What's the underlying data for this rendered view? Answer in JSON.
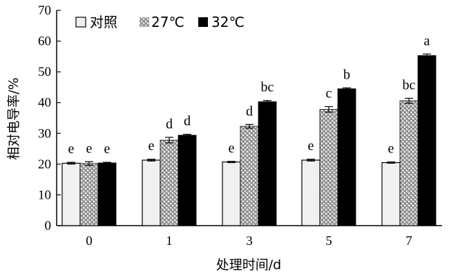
{
  "chart_data": {
    "type": "bar",
    "xlabel": "处理时间/d",
    "ylabel": "相对电导率/%",
    "ylim": [
      0,
      70
    ],
    "yticks": [
      0,
      10,
      20,
      30,
      40,
      50,
      60,
      70
    ],
    "categories": [
      "0",
      "1",
      "3",
      "5",
      "7"
    ],
    "grid": false,
    "legend_position": "top-left",
    "series": [
      {
        "name": "对照",
        "fill": "#f0f0f0",
        "values": [
          20.3,
          21.3,
          20.7,
          21.3,
          20.5
        ],
        "errors": [
          0.3,
          0.3,
          0.2,
          0.3,
          0.2
        ],
        "labels": [
          "e",
          "e",
          "e",
          "e",
          "e"
        ]
      },
      {
        "name": "27℃",
        "fill": "pattern",
        "values": [
          20.2,
          27.8,
          32.3,
          37.8,
          40.6
        ],
        "errors": [
          0.6,
          0.9,
          0.6,
          0.9,
          0.8
        ],
        "labels": [
          "e",
          "d",
          "d",
          "c",
          "bc"
        ]
      },
      {
        "name": "32℃",
        "fill": "#000000",
        "values": [
          20.4,
          29.4,
          40.3,
          44.5,
          55.3
        ],
        "errors": [
          0.2,
          0.3,
          0.4,
          0.3,
          0.5
        ],
        "labels": [
          "e",
          "d",
          "bc",
          "b",
          "a"
        ]
      }
    ]
  }
}
